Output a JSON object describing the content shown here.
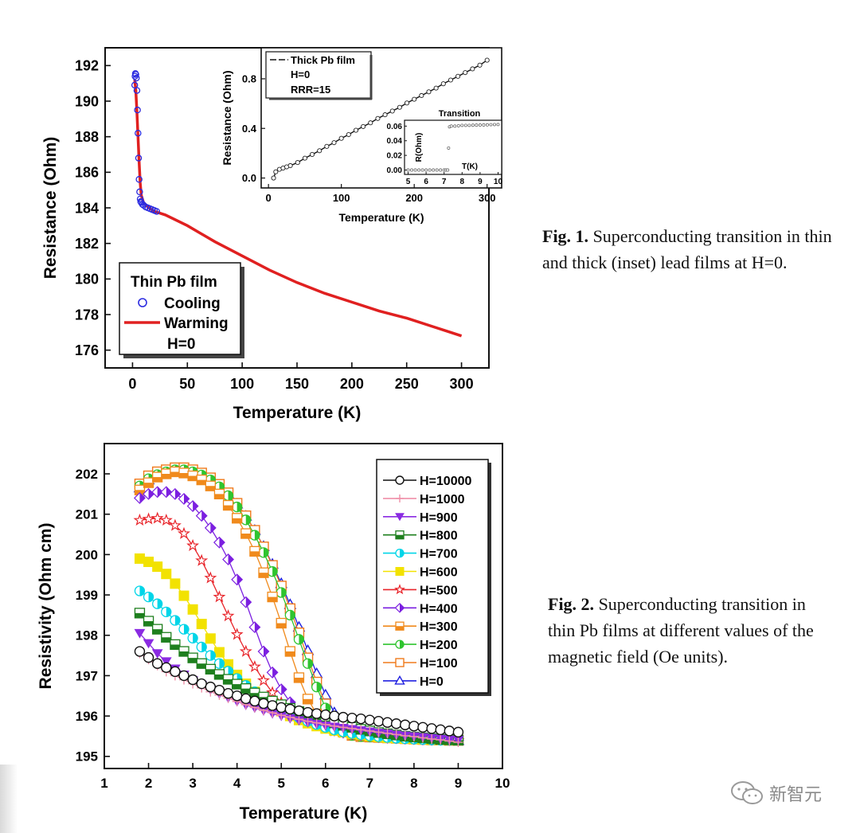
{
  "captions": {
    "fig1_label": "Fig. 1.",
    "fig1_text": "Superconducting transition in thin and thick (inset) lead films at  H=0.",
    "fig2_label": "Fig. 2.",
    "fig2_text": "Superconducting transition in thin Pb films at different values of the magnetic field (Oe units)."
  },
  "watermark": {
    "text": "新智元",
    "icon": "wechat-icon"
  },
  "colors": {
    "cooling": "#2b2be0",
    "warming": "#e02020",
    "inset_line": "#111111"
  },
  "chart_data": [
    {
      "type": "line",
      "id": "fig1",
      "xlabel": "Temperature (K)",
      "ylabel": "Resistance (Ohm)",
      "xlim": [
        -25,
        325
      ],
      "ylim": [
        175,
        193
      ],
      "xticks": [
        0,
        50,
        100,
        150,
        200,
        250,
        300
      ],
      "yticks": [
        176,
        178,
        180,
        182,
        184,
        186,
        188,
        190,
        192
      ],
      "legend": {
        "title": "Thin Pb film",
        "entries": [
          "Cooling",
          "Warming"
        ],
        "note": "H=0",
        "position": "bottom-left"
      },
      "series": [
        {
          "name": "Cooling",
          "marker": "circle",
          "x": [
            2.0,
            2.3,
            2.6,
            3.0,
            3.5,
            4.0,
            4.5,
            5.0,
            5.5,
            6.0,
            6.5,
            7.0,
            7.5,
            8.0,
            9.0,
            10.0,
            12.0,
            14.0,
            16.0,
            18.0,
            20.0,
            22.0
          ],
          "y": [
            190.9,
            191.4,
            191.55,
            191.5,
            191.3,
            190.6,
            189.5,
            188.2,
            186.8,
            185.6,
            184.9,
            184.5,
            184.35,
            184.3,
            184.2,
            184.15,
            184.05,
            184.0,
            183.95,
            183.9,
            183.85,
            183.8
          ]
        },
        {
          "name": "Warming",
          "marker": "line",
          "x": [
            2.0,
            3.0,
            4.0,
            5.0,
            6.0,
            7.0,
            8.0,
            10.0,
            15.0,
            20.0,
            30.0,
            50.0,
            75.0,
            100.0,
            125.0,
            150.0,
            175.0,
            200.0,
            225.0,
            250.0,
            275.0,
            290.0,
            300.0
          ],
          "y": [
            191.2,
            190.6,
            189.4,
            188.0,
            186.6,
            185.4,
            184.7,
            184.3,
            184.0,
            183.8,
            183.6,
            183.0,
            182.1,
            181.3,
            180.5,
            179.8,
            179.2,
            178.7,
            178.2,
            177.8,
            177.3,
            177.0,
            176.8
          ]
        }
      ],
      "inset": {
        "xlabel": "Temperature (K)",
        "ylabel": "Resistance (Ohm)",
        "xlim": [
          -10,
          320
        ],
        "ylim": [
          -0.08,
          1.05
        ],
        "xticks": [
          0,
          100,
          200,
          300
        ],
        "yticks": [
          0.0,
          0.4,
          0.8
        ],
        "ytick_labels": [
          "0.0",
          "0.4",
          "0.8"
        ],
        "legend": {
          "entry": "Thick Pb film",
          "lines": [
            "H=0",
            "RRR=15"
          ]
        },
        "series": [
          {
            "name": "Thick Pb film",
            "x": [
              7,
              10,
              15,
              20,
              25,
              30,
              40,
              50,
              60,
              70,
              80,
              90,
              100,
              110,
              120,
              130,
              140,
              150,
              160,
              170,
              180,
              190,
              200,
              210,
              220,
              230,
              240,
              250,
              260,
              270,
              280,
              290,
              300
            ],
            "y": [
              0.0,
              0.05,
              0.07,
              0.08,
              0.09,
              0.1,
              0.125,
              0.16,
              0.19,
              0.22,
              0.255,
              0.285,
              0.32,
              0.35,
              0.385,
              0.415,
              0.445,
              0.48,
              0.51,
              0.54,
              0.57,
              0.605,
              0.635,
              0.665,
              0.695,
              0.725,
              0.76,
              0.79,
              0.82,
              0.85,
              0.88,
              0.91,
              0.95
            ]
          }
        ],
        "sub_inset": {
          "title": "Transition",
          "xlabel": "T(K)",
          "ylabel": "R(Ohm)",
          "xlim": [
            4.8,
            10.2
          ],
          "ylim": [
            -0.006,
            0.068
          ],
          "xticks": [
            5,
            6,
            7,
            8,
            9,
            10
          ],
          "yticks": [
            0.0,
            0.02,
            0.04,
            0.06
          ],
          "ytick_labels": [
            "0.00",
            "0.02",
            "0.04",
            "0.06"
          ],
          "series": [
            {
              "name": "Transition",
              "x": [
                5.0,
                5.2,
                5.4,
                5.6,
                5.8,
                6.0,
                6.2,
                6.4,
                6.6,
                6.8,
                7.0,
                7.1,
                7.2,
                7.25,
                7.3,
                7.4,
                7.6,
                7.8,
                8.0,
                8.2,
                8.4,
                8.6,
                8.8,
                9.0,
                9.2,
                9.4,
                9.6,
                9.8,
                10.0
              ],
              "y": [
                0.0,
                0.0,
                0.0,
                0.0,
                0.0,
                0.0,
                0.0,
                0.0,
                0.0,
                0.0,
                0.0,
                0.0,
                0.0,
                0.03,
                0.059,
                0.06,
                0.06,
                0.0605,
                0.061,
                0.061,
                0.061,
                0.0612,
                0.0614,
                0.0615,
                0.0616,
                0.0618,
                0.062,
                0.0621,
                0.0622
              ]
            }
          ]
        }
      }
    },
    {
      "type": "line",
      "id": "fig2",
      "xlabel": "Temperature (K)",
      "ylabel": "Resistivity (Ohm cm)",
      "xlim": [
        1,
        10
      ],
      "ylim": [
        194.7,
        202.75
      ],
      "xticks": [
        1,
        2,
        3,
        4,
        5,
        6,
        7,
        8,
        9,
        10
      ],
      "yticks": [
        195,
        196,
        197,
        198,
        199,
        200,
        201,
        202
      ],
      "legend_position": "top-right",
      "x": [
        1.8,
        2.0,
        2.2,
        2.4,
        2.6,
        2.8,
        3.0,
        3.2,
        3.4,
        3.6,
        3.8,
        4.0,
        4.2,
        4.4,
        4.6,
        4.8,
        5.0,
        5.2,
        5.4,
        5.6,
        5.8,
        6.0,
        6.2,
        6.4,
        6.6,
        6.8,
        7.0,
        7.2,
        7.4,
        7.6,
        7.8,
        8.0,
        8.2,
        8.4,
        8.6,
        8.8,
        9.0
      ],
      "series": [
        {
          "name": "H=10000",
          "color": "#111111",
          "marker": "circle-open",
          "values": [
            197.6,
            197.45,
            197.3,
            197.2,
            197.1,
            197.0,
            196.9,
            196.8,
            196.72,
            196.64,
            196.56,
            196.5,
            196.43,
            196.37,
            196.31,
            196.26,
            196.21,
            196.17,
            196.13,
            196.09,
            196.06,
            196.03,
            196.0,
            195.97,
            195.95,
            195.93,
            195.9,
            195.87,
            195.84,
            195.81,
            195.78,
            195.75,
            195.72,
            195.69,
            195.66,
            195.63,
            195.6
          ]
        },
        {
          "name": "H=1000",
          "color": "#ef8fa8",
          "marker": "plus",
          "values": [
            197.55,
            197.4,
            197.25,
            197.1,
            197.0,
            196.9,
            196.8,
            196.7,
            196.6,
            196.52,
            196.44,
            196.36,
            196.28,
            196.21,
            196.14,
            196.08,
            196.02,
            195.97,
            195.92,
            195.87,
            195.83,
            195.79,
            195.75,
            195.72,
            195.69,
            195.66,
            195.63,
            195.6,
            195.57,
            195.54,
            195.51,
            195.49,
            195.46,
            195.43,
            195.41,
            195.38,
            195.35
          ]
        },
        {
          "name": "H=900",
          "color": "#8a2be2",
          "marker": "triangle-down",
          "values": [
            198.05,
            197.8,
            197.55,
            197.35,
            197.17,
            197.02,
            196.88,
            196.76,
            196.65,
            196.55,
            196.45,
            196.36,
            196.27,
            196.2,
            196.13,
            196.06,
            196.0,
            195.94,
            195.89,
            195.84,
            195.8,
            195.76,
            195.73,
            195.7,
            195.67,
            195.64,
            195.61,
            195.58,
            195.56,
            195.53,
            195.51,
            195.49,
            195.47,
            195.45,
            195.43,
            195.41,
            195.4
          ]
        },
        {
          "name": "H=800",
          "color": "#1e7f1e",
          "marker": "square-half",
          "values": [
            198.55,
            198.35,
            198.15,
            197.95,
            197.77,
            197.6,
            197.44,
            197.3,
            197.16,
            197.03,
            196.91,
            196.79,
            196.68,
            196.57,
            196.47,
            196.37,
            196.28,
            196.19,
            196.11,
            196.03,
            195.96,
            195.89,
            195.83,
            195.77,
            195.72,
            195.67,
            195.63,
            195.59,
            195.56,
            195.53,
            195.5,
            195.48,
            195.46,
            195.44,
            195.42,
            195.41,
            195.4
          ]
        },
        {
          "name": "H=700",
          "color": "#00d5e8",
          "marker": "circle-half",
          "values": [
            199.1,
            198.95,
            198.78,
            198.58,
            198.37,
            198.15,
            197.93,
            197.71,
            197.5,
            197.3,
            197.11,
            196.93,
            196.76,
            196.6,
            196.45,
            196.31,
            196.18,
            196.06,
            195.96,
            195.87,
            195.79,
            195.72,
            195.66,
            195.61,
            195.57,
            195.54,
            195.51,
            195.49,
            195.47,
            195.45,
            195.44,
            195.43,
            195.42,
            195.41,
            195.4,
            195.4,
            195.4
          ]
        },
        {
          "name": "H=600",
          "color": "#f2e200",
          "marker": "square",
          "values": [
            199.9,
            199.82,
            199.7,
            199.52,
            199.28,
            198.98,
            198.64,
            198.28,
            197.92,
            197.58,
            197.28,
            197.02,
            196.8,
            196.6,
            196.42,
            196.26,
            196.12,
            196.0,
            195.9,
            195.82,
            195.75,
            195.69,
            195.64,
            195.6,
            195.56,
            195.53,
            195.5,
            195.48,
            195.46,
            195.45,
            195.44,
            195.43,
            195.42,
            195.41,
            195.41,
            195.4,
            195.4
          ]
        },
        {
          "name": "H=500",
          "color": "#e8242a",
          "marker": "star-open",
          "values": [
            200.85,
            200.88,
            200.9,
            200.85,
            200.72,
            200.52,
            200.22,
            199.85,
            199.42,
            198.95,
            198.48,
            198.02,
            197.6,
            197.22,
            196.88,
            196.58,
            196.33,
            196.13,
            195.97,
            195.85,
            195.76,
            195.69,
            195.63,
            195.59,
            195.55,
            195.52,
            195.5,
            195.48,
            195.46,
            195.45,
            195.44,
            195.43,
            195.42,
            195.41,
            195.41,
            195.4,
            195.4
          ]
        },
        {
          "name": "H=400",
          "color": "#7b1fe0",
          "marker": "diamond-half",
          "values": [
            201.4,
            201.5,
            201.55,
            201.55,
            201.5,
            201.38,
            201.2,
            200.96,
            200.66,
            200.3,
            199.88,
            199.38,
            198.82,
            198.2,
            197.6,
            197.08,
            196.66,
            196.34,
            196.1,
            195.93,
            195.8,
            195.71,
            195.64,
            195.59,
            195.55,
            195.52,
            195.5,
            195.48,
            195.46,
            195.45,
            195.44,
            195.43,
            195.42,
            195.41,
            195.41,
            195.4,
            195.4
          ]
        },
        {
          "name": "H=300",
          "color": "#f08a1c",
          "marker": "square-half",
          "values": [
            201.6,
            201.78,
            201.92,
            202.0,
            202.05,
            202.02,
            201.95,
            201.85,
            201.7,
            201.5,
            201.22,
            200.9,
            200.52,
            200.08,
            199.55,
            198.95,
            198.3,
            197.6,
            196.95,
            196.42,
            196.05,
            195.82,
            195.68,
            195.6,
            195.55,
            195.52,
            195.5,
            195.48,
            195.46,
            195.45,
            195.44,
            195.43,
            195.42,
            195.41,
            195.41,
            195.4,
            195.4
          ]
        },
        {
          "name": "H=200",
          "color": "#2fc42f",
          "marker": "circle-half",
          "values": [
            201.7,
            201.88,
            201.98,
            202.05,
            202.1,
            202.1,
            202.05,
            201.97,
            201.85,
            201.68,
            201.46,
            201.18,
            200.86,
            200.48,
            200.05,
            199.58,
            199.06,
            198.5,
            197.9,
            197.3,
            196.72,
            196.2,
            195.82,
            195.6,
            195.52,
            195.49,
            195.48,
            195.47,
            195.46,
            195.45,
            195.44,
            195.43,
            195.42,
            195.41,
            195.41,
            195.4,
            195.4
          ]
        },
        {
          "name": "H=100",
          "color": "#f07a1c",
          "marker": "square-open",
          "values": [
            201.75,
            201.95,
            202.05,
            202.1,
            202.15,
            202.15,
            202.1,
            202.02,
            201.9,
            201.74,
            201.53,
            201.27,
            200.96,
            200.6,
            200.19,
            199.73,
            199.22,
            198.66,
            198.06,
            197.44,
            196.84,
            196.3,
            195.88,
            195.62,
            195.52,
            195.49,
            195.48,
            195.47,
            195.46,
            195.45,
            195.44,
            195.43,
            195.42,
            195.41,
            195.41,
            195.4,
            195.4
          ]
        },
        {
          "name": "H=0",
          "color": "#2020e0",
          "marker": "triangle-open",
          "values": [
            201.65,
            201.85,
            201.98,
            202.06,
            202.1,
            202.1,
            202.05,
            201.97,
            201.85,
            201.7,
            201.5,
            201.25,
            200.95,
            200.6,
            200.2,
            199.76,
            199.28,
            198.76,
            198.2,
            197.62,
            197.05,
            196.52,
            196.08,
            195.76,
            195.58,
            195.5,
            195.47,
            195.46,
            195.45,
            195.44,
            195.43,
            195.42,
            195.41,
            195.4,
            195.4,
            195.39,
            195.39
          ]
        }
      ]
    }
  ]
}
